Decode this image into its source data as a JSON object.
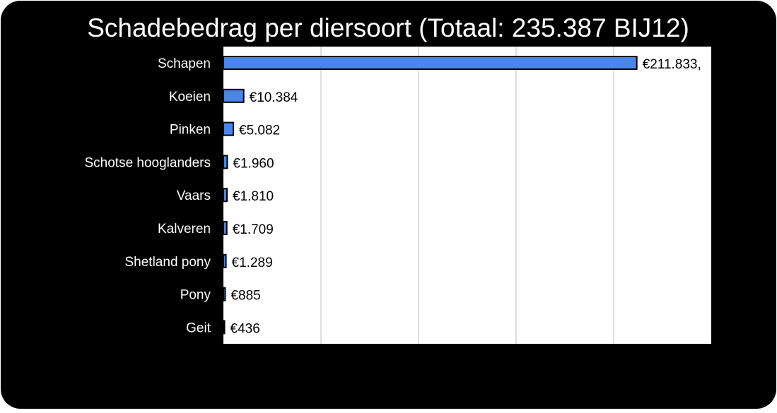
{
  "chart_data": {
    "type": "bar",
    "orientation": "horizontal",
    "title": "Schadebedrag per diersoort (Totaal: 235.387 BIJ12)",
    "categories": [
      "Schapen",
      "Koeien",
      "Pinken",
      "Schotse hooglanders",
      "Vaars",
      "Kalveren",
      "Shetland pony",
      "Pony",
      "Geit"
    ],
    "values": [
      211833,
      10384,
      5082,
      1960,
      1810,
      1709,
      1289,
      885,
      436
    ],
    "value_labels": [
      "€211.833,",
      "€10.384",
      "€5.082",
      "€1.960",
      "€1.810",
      "€1.709",
      "€1.289",
      "€885",
      "€436"
    ],
    "xlim": [
      0,
      250000
    ],
    "grid": true,
    "colors": {
      "background": "#000000",
      "plot_area": "#ffffff",
      "bar": "#4a86e8",
      "bar_border": "#000000",
      "gridline": "#bdbdbd",
      "text_on_dark": "#ffffff",
      "text_on_light": "#000000"
    }
  }
}
